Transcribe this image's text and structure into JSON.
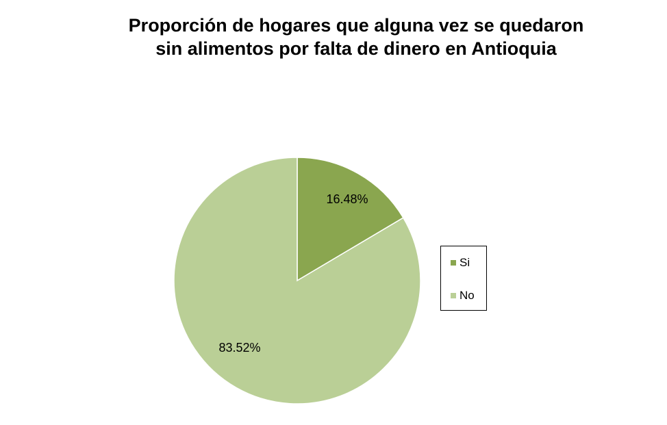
{
  "chart_data": {
    "type": "pie",
    "title_lines": [
      "Proporción de hogares que alguna vez se quedaron",
      "sin alimentos por falta de dinero en Antioquia"
    ],
    "categories": [
      "Si",
      "No"
    ],
    "values": [
      16.48,
      83.52
    ],
    "data_labels": [
      "16.48%",
      "83.52%"
    ],
    "colors": [
      "#8aa64f",
      "#bacf96"
    ],
    "start_angle": "12 o'clock",
    "direction": "clockwise",
    "legend_position": "right"
  }
}
